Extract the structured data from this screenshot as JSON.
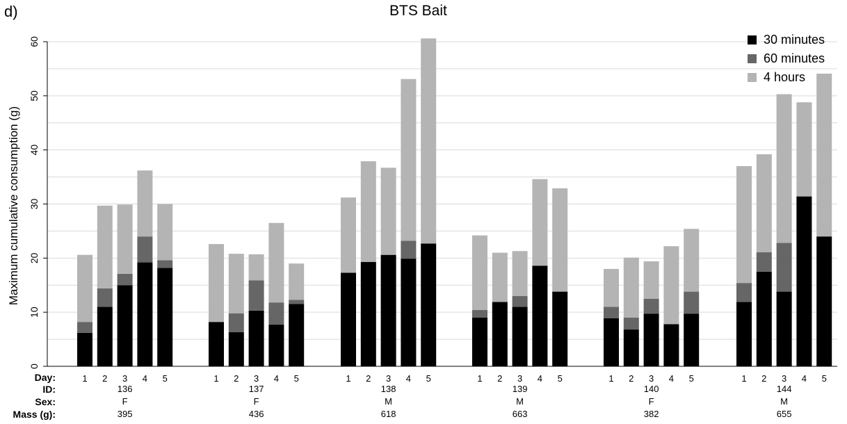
{
  "panel_label": "d)",
  "chart_data": {
    "type": "bar",
    "stacked": true,
    "title": "BTS Bait",
    "xlabel": "",
    "ylabel": "Maximum cumulative consumption (g)",
    "ylim": [
      0,
      60
    ],
    "yticks": [
      0,
      10,
      20,
      30,
      40,
      50,
      60
    ],
    "grid": "horizontal",
    "legend_position": "top-right",
    "series": [
      {
        "name": "30 minutes",
        "color": "#000000"
      },
      {
        "name": "60 minutes",
        "color": "#666666"
      },
      {
        "name": "4 hours",
        "color": "#b4b4b4"
      }
    ],
    "row_labels": {
      "day": "Day:",
      "id": "ID:",
      "sex": "Sex:",
      "mass": "Mass (g):"
    },
    "groups": [
      {
        "id": "136",
        "sex": "F",
        "mass": "395",
        "bars": [
          {
            "day": "1",
            "min30": 6.2,
            "min60": 8.2,
            "hr4": 20.6
          },
          {
            "day": "2",
            "min30": 11.0,
            "min60": 14.4,
            "hr4": 29.7
          },
          {
            "day": "3",
            "min30": 15.0,
            "min60": 17.1,
            "hr4": 29.9
          },
          {
            "day": "4",
            "min30": 19.2,
            "min60": 24.0,
            "hr4": 36.2
          },
          {
            "day": "5",
            "min30": 18.2,
            "min60": 19.6,
            "hr4": 30.0
          }
        ]
      },
      {
        "id": "137",
        "sex": "F",
        "mass": "436",
        "bars": [
          {
            "day": "1",
            "min30": 8.2,
            "min60": 8.2,
            "hr4": 22.6
          },
          {
            "day": "2",
            "min30": 6.3,
            "min60": 9.8,
            "hr4": 20.8
          },
          {
            "day": "3",
            "min30": 10.3,
            "min60": 15.9,
            "hr4": 20.7
          },
          {
            "day": "4",
            "min30": 7.7,
            "min60": 11.8,
            "hr4": 26.5
          },
          {
            "day": "5",
            "min30": 11.5,
            "min60": 12.3,
            "hr4": 19.0
          }
        ]
      },
      {
        "id": "138",
        "sex": "M",
        "mass": "618",
        "bars": [
          {
            "day": "1",
            "min30": 17.3,
            "min60": 17.3,
            "hr4": 31.2
          },
          {
            "day": "2",
            "min30": 19.3,
            "min60": 19.3,
            "hr4": 37.9
          },
          {
            "day": "3",
            "min30": 20.6,
            "min60": 20.6,
            "hr4": 36.7
          },
          {
            "day": "4",
            "min30": 19.9,
            "min60": 23.2,
            "hr4": 53.1
          },
          {
            "day": "5",
            "min30": 22.7,
            "min60": 22.7,
            "hr4": 60.6
          }
        ]
      },
      {
        "id": "139",
        "sex": "M",
        "mass": "663",
        "bars": [
          {
            "day": "1",
            "min30": 9.0,
            "min60": 10.4,
            "hr4": 24.2
          },
          {
            "day": "2",
            "min30": 11.9,
            "min60": 11.9,
            "hr4": 21.0
          },
          {
            "day": "3",
            "min30": 11.0,
            "min60": 13.0,
            "hr4": 21.3
          },
          {
            "day": "4",
            "min30": 18.6,
            "min60": 18.6,
            "hr4": 34.6
          },
          {
            "day": "5",
            "min30": 13.8,
            "min60": 13.8,
            "hr4": 32.9
          }
        ]
      },
      {
        "id": "140",
        "sex": "F",
        "mass": "382",
        "bars": [
          {
            "day": "1",
            "min30": 8.9,
            "min60": 11.0,
            "hr4": 18.0
          },
          {
            "day": "2",
            "min30": 6.8,
            "min60": 9.0,
            "hr4": 20.1
          },
          {
            "day": "3",
            "min30": 9.7,
            "min60": 12.5,
            "hr4": 19.4
          },
          {
            "day": "4",
            "min30": 7.8,
            "min60": 7.8,
            "hr4": 22.2
          },
          {
            "day": "5",
            "min30": 9.7,
            "min60": 13.8,
            "hr4": 25.4
          }
        ]
      },
      {
        "id": "144",
        "sex": "M",
        "mass": "655",
        "bars": [
          {
            "day": "1",
            "min30": 11.9,
            "min60": 15.4,
            "hr4": 37.0
          },
          {
            "day": "2",
            "min30": 17.5,
            "min60": 21.1,
            "hr4": 39.2
          },
          {
            "day": "3",
            "min30": 13.8,
            "min60": 22.8,
            "hr4": 50.3
          },
          {
            "day": "4",
            "min30": 31.4,
            "min60": 31.4,
            "hr4": 48.8
          },
          {
            "day": "5",
            "min30": 24.0,
            "min60": 24.0,
            "hr4": 54.1
          }
        ]
      }
    ]
  }
}
